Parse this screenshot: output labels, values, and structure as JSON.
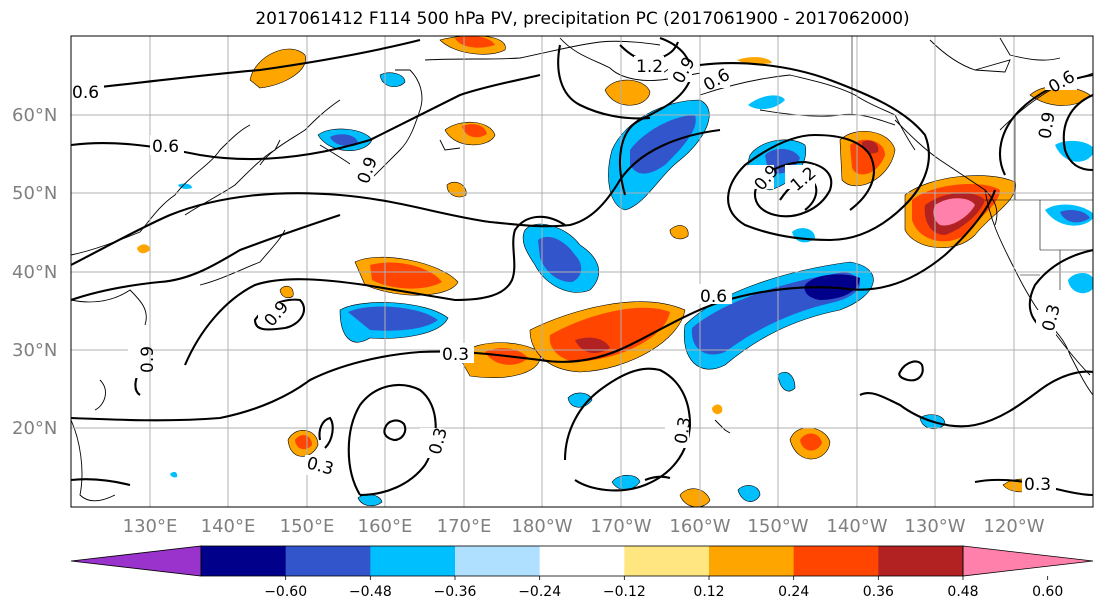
{
  "title": "2017061412 F114 500 hPa PV, precipitation PC (2017061900 - 2017062000)",
  "lat_labels": [
    "60°N",
    "50°N",
    "40°N",
    "30°N",
    "20°N"
  ],
  "lon_labels": [
    "130°E",
    "140°E",
    "150°E",
    "160°E",
    "170°E",
    "180°W",
    "170°W",
    "160°W",
    "150°W",
    "140°W",
    "130°W",
    "120°W"
  ],
  "colorbar": {
    "ticks": [
      "−0.60",
      "−0.48",
      "−0.36",
      "−0.24",
      "−0.12",
      "0.12",
      "0.24",
      "0.36",
      "0.48",
      "0.60"
    ],
    "colors": [
      "#9933cc",
      "#00008b",
      "#3355cc",
      "#00bfff",
      "#b0e0ff",
      "#ffffff",
      "#ffe680",
      "#ffa500",
      "#ff4500",
      "#b22222",
      "#ff80aa"
    ]
  },
  "contour_labels": [
    "0.6",
    "0.6",
    "0.9",
    "1.2",
    "0.9",
    "0.6",
    "0.6",
    "0.9",
    "0.9",
    "1.2",
    "0.9",
    "0.6",
    "0.3",
    "0.3",
    "0.3",
    "0.3",
    "0.3",
    "0.9",
    "0.6",
    "0.3",
    "0.3"
  ]
}
